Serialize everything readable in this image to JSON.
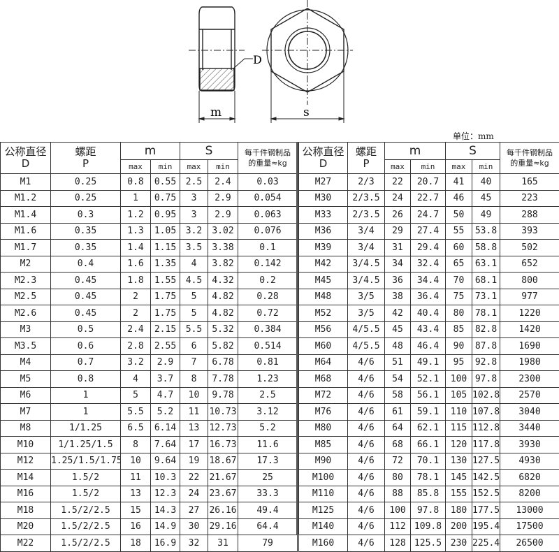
{
  "drawing": {
    "label_d": "D",
    "label_m": "m",
    "label_s": "s"
  },
  "unit_label": "单位：mm",
  "headers": {
    "d_cn": "公称直径",
    "d": "D",
    "p_cn": "螺距",
    "p": "P",
    "m": "m",
    "s": "S",
    "max": "max",
    "min": "min",
    "weight_1": "每千件钢制品",
    "weight_2": "的重量≈kg"
  },
  "left_rows": [
    [
      "M1",
      "0.25",
      "0.8",
      "0.55",
      "2.5",
      "2.4",
      "0.03"
    ],
    [
      "M1.2",
      "0.25",
      "1",
      "0.75",
      "3",
      "2.9",
      "0.054"
    ],
    [
      "M1.4",
      "0.3",
      "1.2",
      "0.95",
      "3",
      "2.9",
      "0.063"
    ],
    [
      "M1.6",
      "0.35",
      "1.3",
      "1.05",
      "3.2",
      "3.02",
      "0.076"
    ],
    [
      "M1.7",
      "0.35",
      "1.4",
      "1.15",
      "3.5",
      "3.38",
      "0.1"
    ],
    [
      "M2",
      "0.4",
      "1.6",
      "1.35",
      "4",
      "3.82",
      "0.142"
    ],
    [
      "M2.3",
      "0.45",
      "1.8",
      "1.55",
      "4.5",
      "4.32",
      "0.2"
    ],
    [
      "M2.5",
      "0.45",
      "2",
      "1.75",
      "5",
      "4.82",
      "0.28"
    ],
    [
      "M2.6",
      "0.45",
      "2",
      "1.75",
      "5",
      "4.82",
      "0.72"
    ],
    [
      "M3",
      "0.5",
      "2.4",
      "2.15",
      "5.5",
      "5.32",
      "0.384"
    ],
    [
      "M3.5",
      "0.6",
      "2.8",
      "2.55",
      "6",
      "5.82",
      "0.514"
    ],
    [
      "M4",
      "0.7",
      "3.2",
      "2.9",
      "7",
      "6.78",
      "0.81"
    ],
    [
      "M5",
      "0.8",
      "4",
      "3.7",
      "8",
      "7.78",
      "1.23"
    ],
    [
      "M6",
      "1",
      "5",
      "4.7",
      "10",
      "9.78",
      "2.5"
    ],
    [
      "M7",
      "1",
      "5.5",
      "5.2",
      "11",
      "10.73",
      "3.12"
    ],
    [
      "M8",
      "1/1.25",
      "6.5",
      "6.14",
      "13",
      "12.73",
      "5.2"
    ],
    [
      "M10",
      "1/1.25/1.5",
      "8",
      "7.64",
      "17",
      "16.73",
      "11.6"
    ],
    [
      "M12",
      "1.25/1.5/1.75",
      "10",
      "9.64",
      "19",
      "18.67",
      "17.3"
    ],
    [
      "M14",
      "1.5/2",
      "11",
      "10.3",
      "22",
      "21.67",
      "25"
    ],
    [
      "M16",
      "1.5/2",
      "13",
      "12.3",
      "24",
      "23.67",
      "33.3"
    ],
    [
      "M18",
      "1.5/2/2.5",
      "15",
      "14.3",
      "27",
      "26.16",
      "49.4"
    ],
    [
      "M20",
      "1.5/2/2.5",
      "16",
      "14.9",
      "30",
      "29.16",
      "64.4"
    ],
    [
      "M22",
      "1.5/2/2.5",
      "18",
      "16.9",
      "32",
      "31",
      "79"
    ]
  ],
  "right_rows": [
    [
      "M27",
      "2/3",
      "22",
      "20.7",
      "41",
      "40",
      "165"
    ],
    [
      "M30",
      "2/3.5",
      "24",
      "22.7",
      "46",
      "45",
      "223"
    ],
    [
      "M33",
      "2/3.5",
      "26",
      "24.7",
      "50",
      "49",
      "288"
    ],
    [
      "M36",
      "3/4",
      "29",
      "27.4",
      "55",
      "53.8",
      "393"
    ],
    [
      "M39",
      "3/4",
      "31",
      "29.4",
      "60",
      "58.8",
      "502"
    ],
    [
      "M42",
      "3/4.5",
      "34",
      "32.4",
      "65",
      "63.1",
      "652"
    ],
    [
      "M45",
      "3/4.5",
      "36",
      "34.4",
      "70",
      "68.1",
      "800"
    ],
    [
      "M48",
      "3/5",
      "38",
      "36.4",
      "75",
      "73.1",
      "977"
    ],
    [
      "M52",
      "3/5",
      "42",
      "40.4",
      "80",
      "78.1",
      "1220"
    ],
    [
      "M56",
      "4/5.5",
      "45",
      "43.4",
      "85",
      "82.8",
      "1420"
    ],
    [
      "M60",
      "4/5.5",
      "48",
      "46.4",
      "90",
      "87.8",
      "1690"
    ],
    [
      "M64",
      "4/6",
      "51",
      "49.1",
      "95",
      "92.8",
      "1980"
    ],
    [
      "M68",
      "4/6",
      "54",
      "52.1",
      "100",
      "97.8",
      "2300"
    ],
    [
      "M72",
      "4/6",
      "58",
      "56.1",
      "105",
      "102.8",
      "2570"
    ],
    [
      "M76",
      "4/6",
      "61",
      "59.1",
      "110",
      "107.8",
      "3040"
    ],
    [
      "M80",
      "4/6",
      "64",
      "62.1",
      "115",
      "112.8",
      "3440"
    ],
    [
      "M85",
      "4/6",
      "68",
      "66.1",
      "120",
      "117.8",
      "3930"
    ],
    [
      "M90",
      "4/6",
      "72",
      "70.1",
      "130",
      "127.5",
      "4930"
    ],
    [
      "M100",
      "4/6",
      "80",
      "78.1",
      "145",
      "142.5",
      "6820"
    ],
    [
      "M110",
      "4/6",
      "88",
      "85.8",
      "155",
      "152.5",
      "8200"
    ],
    [
      "M125",
      "4/6",
      "100",
      "97.8",
      "180",
      "177.5",
      "13000"
    ],
    [
      "M140",
      "4/6",
      "112",
      "109.8",
      "200",
      "195.4",
      "17500"
    ],
    [
      "M160",
      "4/6",
      "128",
      "125.5",
      "230",
      "225.4",
      "26500"
    ]
  ]
}
